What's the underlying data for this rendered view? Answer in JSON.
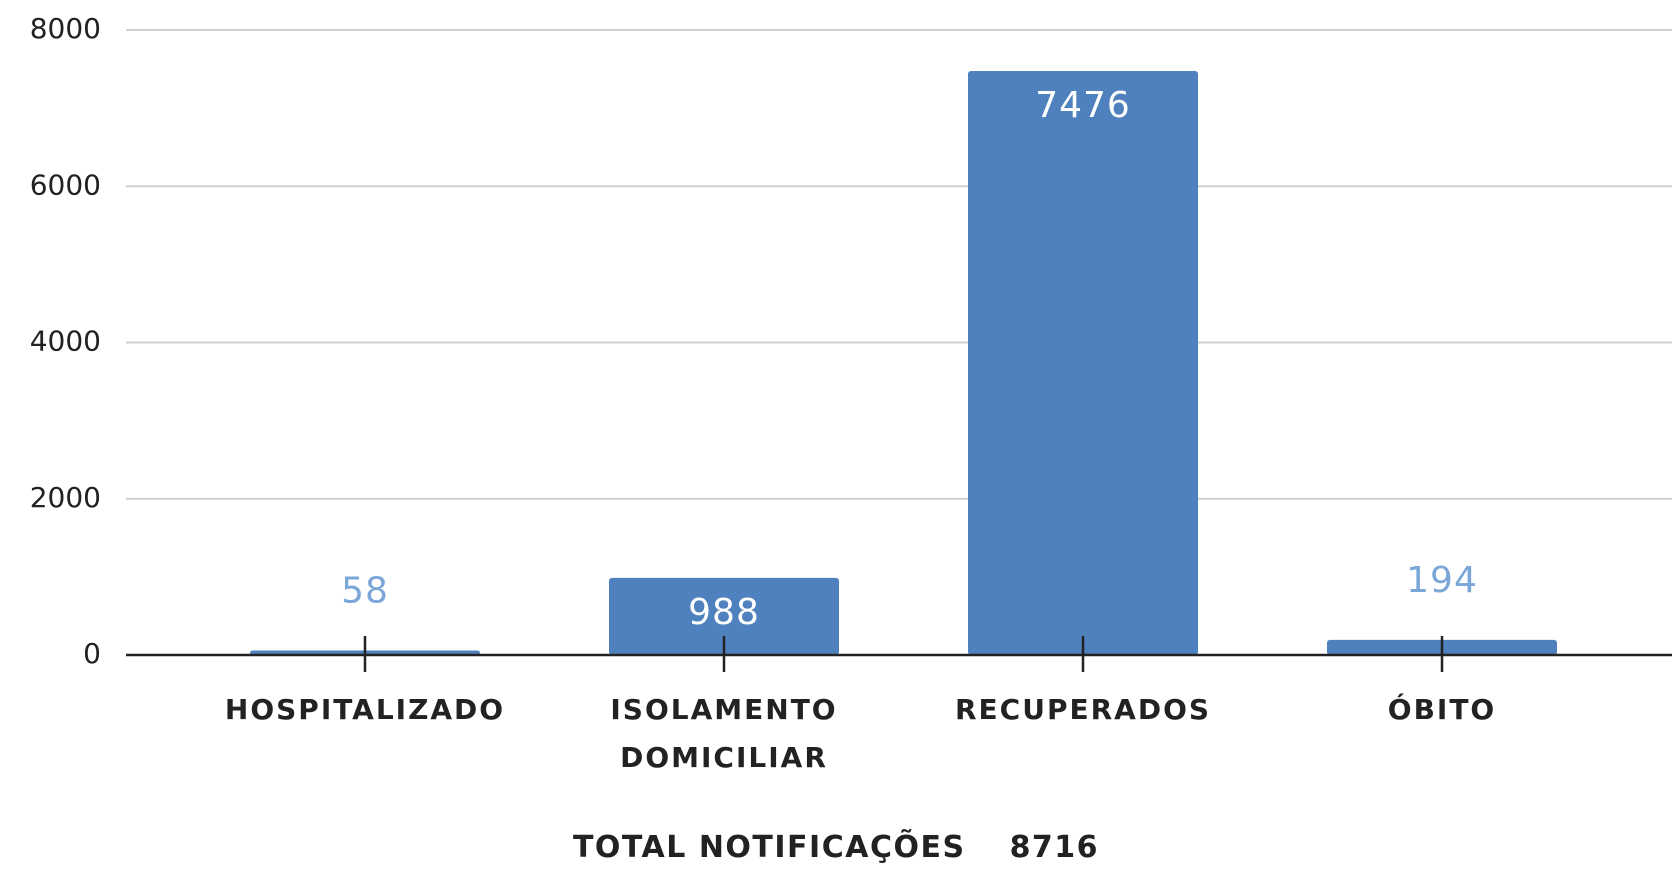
{
  "chart_data": {
    "type": "bar",
    "categories": [
      "HOSPITALIZADO",
      "ISOLAMENTO DOMICILIAR",
      "RECUPERADOS",
      "ÓBITO"
    ],
    "values": [
      58,
      988,
      7476,
      194
    ],
    "color": "#4e81bd",
    "ylim": [
      0,
      8000
    ],
    "yticks": [
      0,
      2000,
      4000,
      6000,
      8000
    ],
    "grid": true,
    "total": {
      "label": "TOTAL NOTIFICAÇÕES",
      "value": 8716
    }
  }
}
